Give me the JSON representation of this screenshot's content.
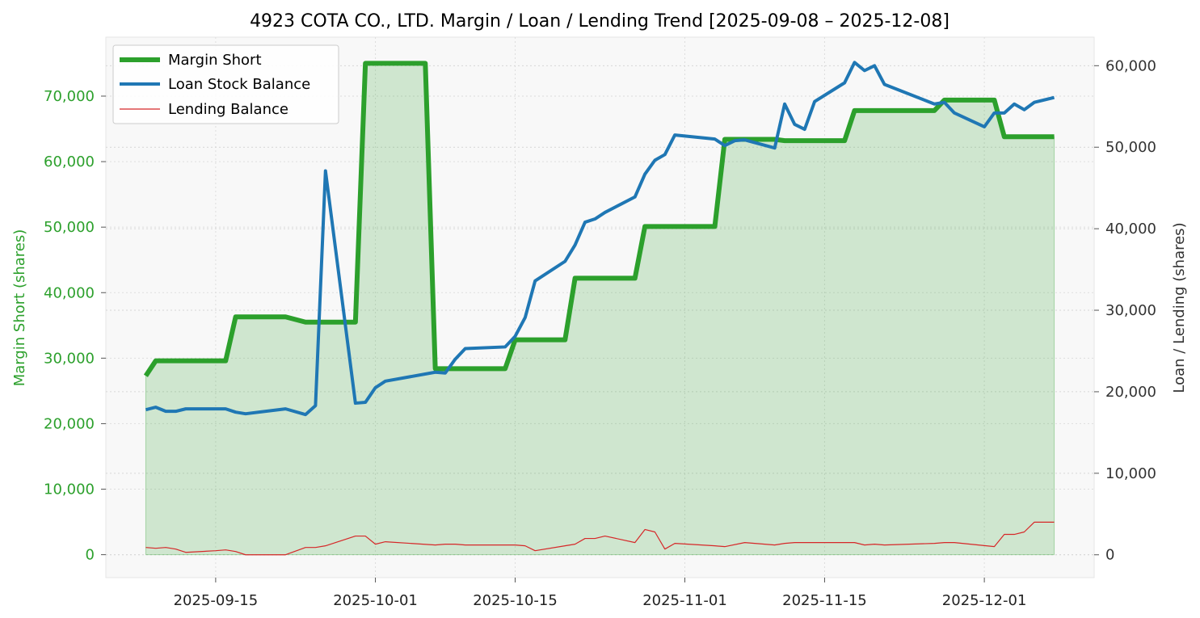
{
  "chart_data": {
    "type": "line",
    "title": "4923 COTA CO., LTD. Margin / Loan / Lending Trend [2025-09-08 – 2025-12-08]",
    "ylabel_left": "Margin Short (shares)",
    "ylabel_right": "Loan / Lending (shares)",
    "xlabel": "",
    "x_ticks": [
      "2025-09-15",
      "2025-10-01",
      "2025-10-15",
      "2025-11-01",
      "2025-11-15",
      "2025-12-01"
    ],
    "y_left_ticks": [
      "0",
      "10,000",
      "20,000",
      "30,000",
      "40,000",
      "50,000",
      "60,000",
      "70,000"
    ],
    "y_right_ticks": [
      "0",
      "10,000",
      "20,000",
      "30,000",
      "40,000",
      "50,000",
      "60,000"
    ],
    "y_left_lim": [
      -3500,
      79000
    ],
    "y_right_lim": [
      -2800,
      63500
    ],
    "x_lim": [
      "2025-09-04",
      "2025-12-12"
    ],
    "legend_position": "top-left",
    "grid": true,
    "colors": {
      "margin": "#2ca02c",
      "loan": "#1f77b4",
      "lending": "#d62728",
      "fill": "#2ca02c"
    },
    "series": [
      {
        "name": "Margin Short",
        "axis": "left",
        "points": [
          [
            "2025-09-08",
            27300
          ],
          [
            "2025-09-09",
            29600
          ],
          [
            "2025-09-10",
            29600
          ],
          [
            "2025-09-11",
            29600
          ],
          [
            "2025-09-12",
            29600
          ],
          [
            "2025-09-15",
            29600
          ],
          [
            "2025-09-16",
            29600
          ],
          [
            "2025-09-17",
            36300
          ],
          [
            "2025-09-18",
            36300
          ],
          [
            "2025-09-19",
            36300
          ],
          [
            "2025-09-22",
            36300
          ],
          [
            "2025-09-24",
            35500
          ],
          [
            "2025-09-25",
            35500
          ],
          [
            "2025-09-26",
            35500
          ],
          [
            "2025-09-29",
            35500
          ],
          [
            "2025-09-30",
            75000
          ],
          [
            "2025-10-01",
            75000
          ],
          [
            "2025-10-03",
            75000
          ],
          [
            "2025-10-06",
            75000
          ],
          [
            "2025-10-07",
            28400
          ],
          [
            "2025-10-08",
            28400
          ],
          [
            "2025-10-09",
            28400
          ],
          [
            "2025-10-10",
            28400
          ],
          [
            "2025-10-14",
            28400
          ],
          [
            "2025-10-15",
            32800
          ],
          [
            "2025-10-16",
            32800
          ],
          [
            "2025-10-17",
            32800
          ],
          [
            "2025-10-20",
            32800
          ],
          [
            "2025-10-21",
            42200
          ],
          [
            "2025-10-22",
            42200
          ],
          [
            "2025-10-23",
            42200
          ],
          [
            "2025-10-24",
            42200
          ],
          [
            "2025-10-27",
            42200
          ],
          [
            "2025-10-28",
            50100
          ],
          [
            "2025-10-29",
            50100
          ],
          [
            "2025-10-30",
            50100
          ],
          [
            "2025-10-31",
            50100
          ],
          [
            "2025-11-04",
            50100
          ],
          [
            "2025-11-05",
            63400
          ],
          [
            "2025-11-06",
            63400
          ],
          [
            "2025-11-07",
            63400
          ],
          [
            "2025-11-10",
            63400
          ],
          [
            "2025-11-11",
            63200
          ],
          [
            "2025-11-12",
            63200
          ],
          [
            "2025-11-13",
            63200
          ],
          [
            "2025-11-14",
            63200
          ],
          [
            "2025-11-17",
            63200
          ],
          [
            "2025-11-18",
            67800
          ],
          [
            "2025-11-19",
            67800
          ],
          [
            "2025-11-20",
            67800
          ],
          [
            "2025-11-21",
            67800
          ],
          [
            "2025-11-25",
            67800
          ],
          [
            "2025-11-26",
            67800
          ],
          [
            "2025-11-27",
            69400
          ],
          [
            "2025-11-28",
            69400
          ],
          [
            "2025-12-01",
            69400
          ],
          [
            "2025-12-02",
            69400
          ],
          [
            "2025-12-03",
            63800
          ],
          [
            "2025-12-04",
            63800
          ],
          [
            "2025-12-05",
            63800
          ],
          [
            "2025-12-08",
            63800
          ]
        ]
      },
      {
        "name": "Loan Stock Balance",
        "axis": "right",
        "points": [
          [
            "2025-09-08",
            17800
          ],
          [
            "2025-09-09",
            18100
          ],
          [
            "2025-09-10",
            17600
          ],
          [
            "2025-09-11",
            17600
          ],
          [
            "2025-09-12",
            17900
          ],
          [
            "2025-09-15",
            17900
          ],
          [
            "2025-09-16",
            17900
          ],
          [
            "2025-09-17",
            17500
          ],
          [
            "2025-09-18",
            17300
          ],
          [
            "2025-09-22",
            17900
          ],
          [
            "2025-09-24",
            17200
          ],
          [
            "2025-09-25",
            18300
          ],
          [
            "2025-09-26",
            47100
          ],
          [
            "2025-09-29",
            18600
          ],
          [
            "2025-09-30",
            18700
          ],
          [
            "2025-10-01",
            20500
          ],
          [
            "2025-10-02",
            21300
          ],
          [
            "2025-10-07",
            22400
          ],
          [
            "2025-10-08",
            22300
          ],
          [
            "2025-10-09",
            24000
          ],
          [
            "2025-10-10",
            25300
          ],
          [
            "2025-10-14",
            25500
          ],
          [
            "2025-10-15",
            26800
          ],
          [
            "2025-10-16",
            29100
          ],
          [
            "2025-10-17",
            33600
          ],
          [
            "2025-10-20",
            36000
          ],
          [
            "2025-10-21",
            38000
          ],
          [
            "2025-10-22",
            40800
          ],
          [
            "2025-10-23",
            41200
          ],
          [
            "2025-10-24",
            42000
          ],
          [
            "2025-10-27",
            43900
          ],
          [
            "2025-10-28",
            46700
          ],
          [
            "2025-10-29",
            48400
          ],
          [
            "2025-10-30",
            49100
          ],
          [
            "2025-10-31",
            51500
          ],
          [
            "2025-11-04",
            51000
          ],
          [
            "2025-11-05",
            50200
          ],
          [
            "2025-11-06",
            50800
          ],
          [
            "2025-11-07",
            50900
          ],
          [
            "2025-11-10",
            49900
          ],
          [
            "2025-11-11",
            55300
          ],
          [
            "2025-11-12",
            52800
          ],
          [
            "2025-11-13",
            52200
          ],
          [
            "2025-11-14",
            55600
          ],
          [
            "2025-11-17",
            57900
          ],
          [
            "2025-11-18",
            60400
          ],
          [
            "2025-11-19",
            59400
          ],
          [
            "2025-11-20",
            60000
          ],
          [
            "2025-11-21",
            57700
          ],
          [
            "2025-11-26",
            55300
          ],
          [
            "2025-11-27",
            55500
          ],
          [
            "2025-11-28",
            54200
          ],
          [
            "2025-12-01",
            52500
          ],
          [
            "2025-12-02",
            54200
          ],
          [
            "2025-12-03",
            54200
          ],
          [
            "2025-12-04",
            55300
          ],
          [
            "2025-12-05",
            54600
          ],
          [
            "2025-12-06",
            55500
          ],
          [
            "2025-12-08",
            56100
          ]
        ]
      },
      {
        "name": "Lending Balance",
        "axis": "right",
        "points": [
          [
            "2025-09-08",
            900
          ],
          [
            "2025-09-09",
            800
          ],
          [
            "2025-09-10",
            900
          ],
          [
            "2025-09-11",
            700
          ],
          [
            "2025-09-12",
            300
          ],
          [
            "2025-09-15",
            500
          ],
          [
            "2025-09-16",
            600
          ],
          [
            "2025-09-17",
            400
          ],
          [
            "2025-09-18",
            0
          ],
          [
            "2025-09-22",
            0
          ],
          [
            "2025-09-24",
            900
          ],
          [
            "2025-09-25",
            900
          ],
          [
            "2025-09-26",
            1100
          ],
          [
            "2025-09-29",
            2300
          ],
          [
            "2025-09-30",
            2300
          ],
          [
            "2025-10-01",
            1300
          ],
          [
            "2025-10-02",
            1600
          ],
          [
            "2025-10-07",
            1200
          ],
          [
            "2025-10-08",
            1300
          ],
          [
            "2025-10-09",
            1300
          ],
          [
            "2025-10-10",
            1200
          ],
          [
            "2025-10-14",
            1200
          ],
          [
            "2025-10-15",
            1200
          ],
          [
            "2025-10-16",
            1100
          ],
          [
            "2025-10-17",
            500
          ],
          [
            "2025-10-20",
            1100
          ],
          [
            "2025-10-21",
            1300
          ],
          [
            "2025-10-22",
            2000
          ],
          [
            "2025-10-23",
            2000
          ],
          [
            "2025-10-24",
            2300
          ],
          [
            "2025-10-27",
            1500
          ],
          [
            "2025-10-28",
            3100
          ],
          [
            "2025-10-29",
            2800
          ],
          [
            "2025-10-30",
            700
          ],
          [
            "2025-10-31",
            1400
          ],
          [
            "2025-11-04",
            1100
          ],
          [
            "2025-11-05",
            1000
          ],
          [
            "2025-11-07",
            1500
          ],
          [
            "2025-11-10",
            1200
          ],
          [
            "2025-11-11",
            1400
          ],
          [
            "2025-11-12",
            1500
          ],
          [
            "2025-11-18",
            1500
          ],
          [
            "2025-11-19",
            1200
          ],
          [
            "2025-11-20",
            1300
          ],
          [
            "2025-11-21",
            1200
          ],
          [
            "2025-11-26",
            1400
          ],
          [
            "2025-11-27",
            1500
          ],
          [
            "2025-11-28",
            1500
          ],
          [
            "2025-12-02",
            1000
          ],
          [
            "2025-12-03",
            2500
          ],
          [
            "2025-12-04",
            2500
          ],
          [
            "2025-12-05",
            2800
          ],
          [
            "2025-12-06",
            4000
          ],
          [
            "2025-12-08",
            4000
          ]
        ]
      }
    ]
  }
}
